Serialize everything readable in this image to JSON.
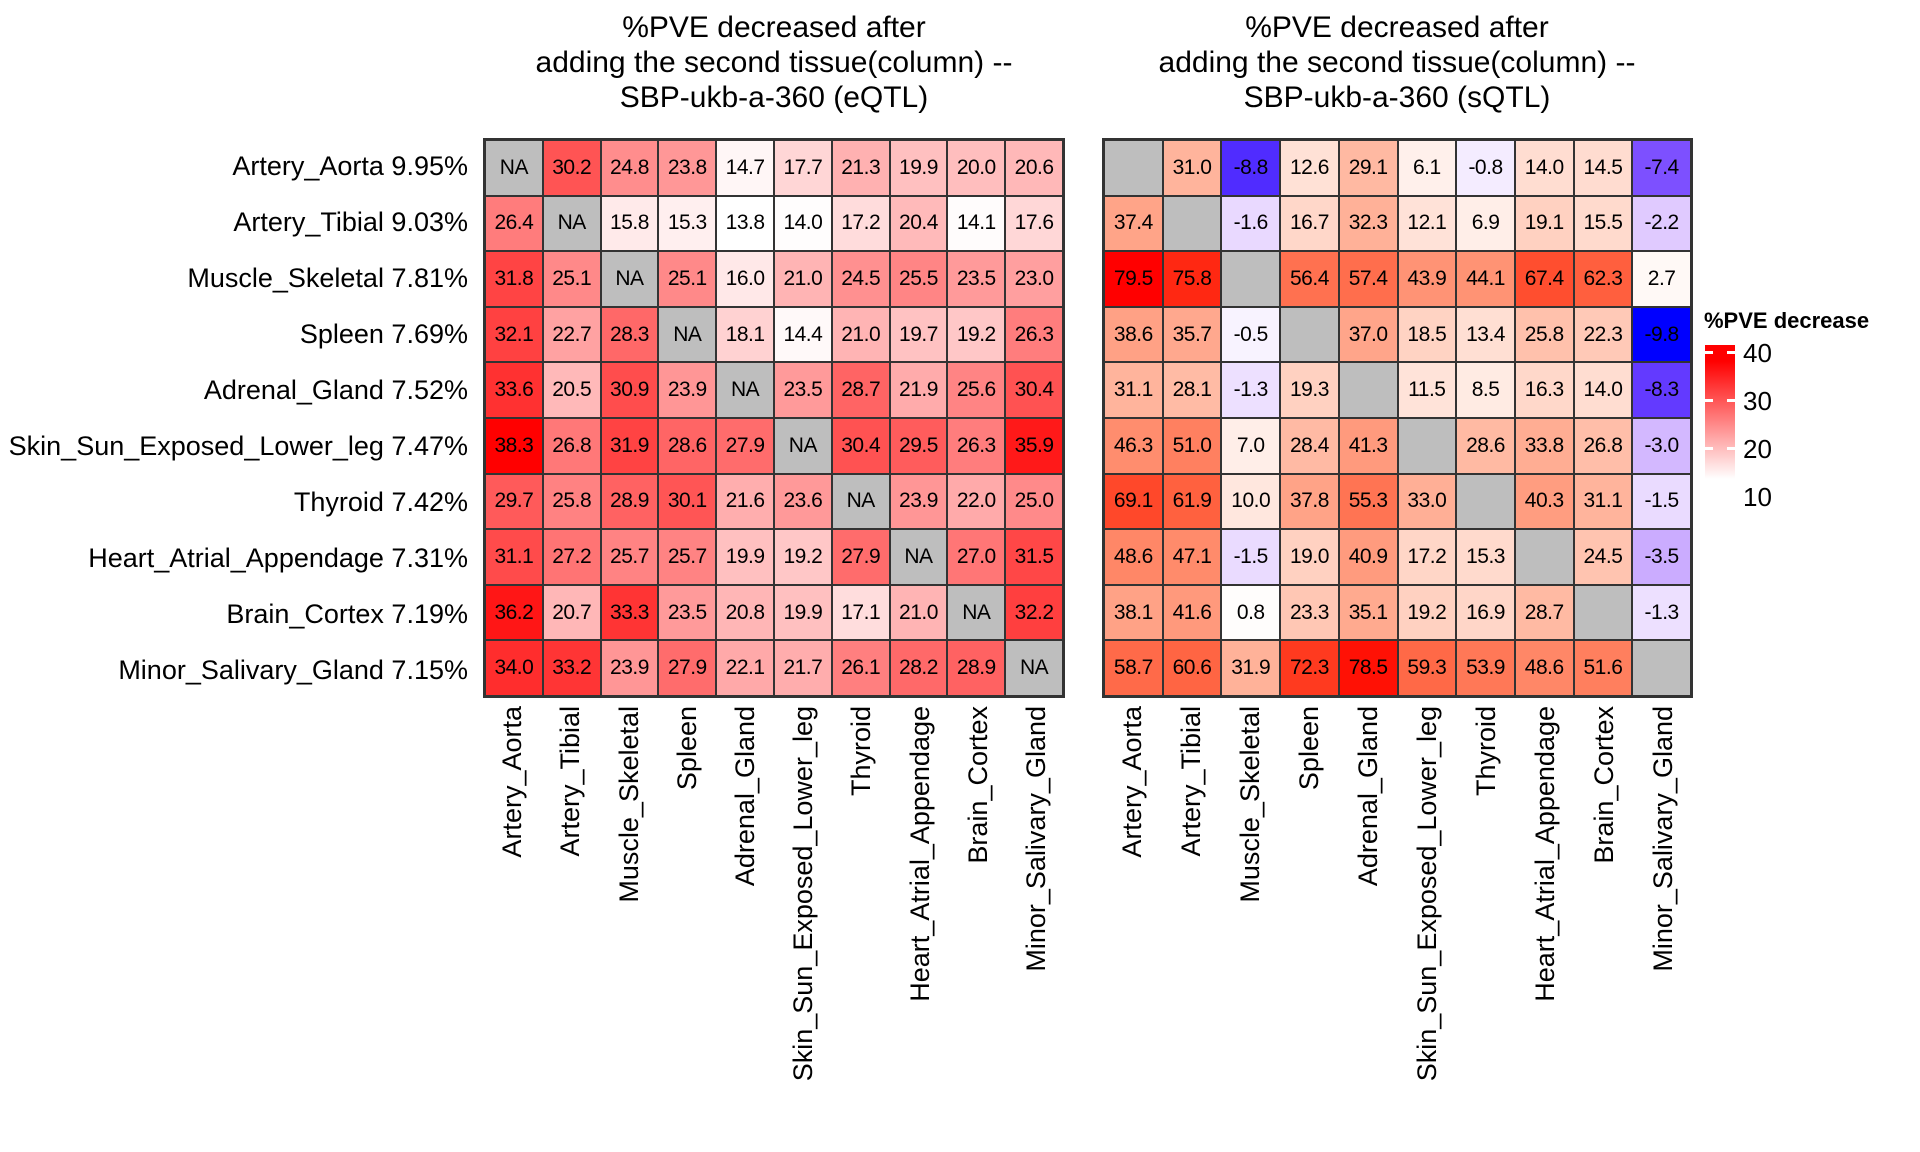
{
  "colors": {
    "background": "#ffffff",
    "na_fill": "#bebebe",
    "cell_border": "#333333",
    "text": "#000000",
    "heat_red": "#ff0000",
    "heat_blue": "#0000ff"
  },
  "chart_data": {
    "type": "heatmap",
    "rows": [
      {
        "tissue": "Artery_Aorta",
        "pve": "9.95%"
      },
      {
        "tissue": "Artery_Tibial",
        "pve": "9.03%"
      },
      {
        "tissue": "Muscle_Skeletal",
        "pve": "7.81%"
      },
      {
        "tissue": "Spleen",
        "pve": "7.69%"
      },
      {
        "tissue": "Adrenal_Gland",
        "pve": "7.52%"
      },
      {
        "tissue": "Skin_Sun_Exposed_Lower_leg",
        "pve": "7.47%"
      },
      {
        "tissue": "Thyroid",
        "pve": "7.42%"
      },
      {
        "tissue": "Heart_Atrial_Appendage",
        "pve": "7.31%"
      },
      {
        "tissue": "Brain_Cortex",
        "pve": "7.19%"
      },
      {
        "tissue": "Minor_Salivary_Gland",
        "pve": "7.15%"
      }
    ],
    "columns": [
      "Artery_Aorta",
      "Artery_Tibial",
      "Muscle_Skeletal",
      "Spleen",
      "Adrenal_Gland",
      "Skin_Sun_Exposed_Lower_leg",
      "Thyroid",
      "Heart_Atrial_Appendage",
      "Brain_Cortex",
      "Minor_Salivary_Gland"
    ],
    "heatmaps": [
      {
        "name": "eQTL",
        "title_lines": [
          "%PVE decreased after",
          "adding the second tissue(column) --",
          "SBP-ukb-a-360 (eQTL)"
        ],
        "na_label": "NA",
        "color_scale": {
          "type": "linear-rgb",
          "white_at": 13.8,
          "red_at": 38.3
        },
        "values": [
          [
            null,
            30.2,
            24.8,
            23.8,
            14.7,
            17.7,
            21.3,
            19.9,
            20.0,
            20.6
          ],
          [
            26.4,
            null,
            15.8,
            15.3,
            13.8,
            14.0,
            17.2,
            20.4,
            14.1,
            17.6
          ],
          [
            31.8,
            25.1,
            null,
            25.1,
            16.0,
            21.0,
            24.5,
            25.5,
            23.5,
            23.0
          ],
          [
            32.1,
            22.7,
            28.3,
            null,
            18.1,
            14.4,
            21.0,
            19.7,
            19.2,
            26.3
          ],
          [
            33.6,
            20.5,
            30.9,
            23.9,
            null,
            23.5,
            28.7,
            21.9,
            25.6,
            30.4
          ],
          [
            38.3,
            26.8,
            31.9,
            28.6,
            27.9,
            null,
            30.4,
            29.5,
            26.3,
            35.9
          ],
          [
            29.7,
            25.8,
            28.9,
            30.1,
            21.6,
            23.6,
            null,
            23.9,
            22.0,
            25.0
          ],
          [
            31.1,
            27.2,
            25.7,
            25.7,
            19.9,
            19.2,
            27.9,
            null,
            27.0,
            31.5
          ],
          [
            36.2,
            20.7,
            33.3,
            23.5,
            20.8,
            19.9,
            17.1,
            21.0,
            null,
            32.2
          ],
          [
            34.0,
            33.2,
            23.9,
            27.9,
            22.1,
            21.7,
            26.1,
            28.2,
            28.9,
            null
          ]
        ]
      },
      {
        "name": "sQTL",
        "title_lines": [
          "%PVE decreased after",
          "adding the second tissue(column) --",
          "SBP-ukb-a-360 (sQTL)"
        ],
        "na_label": "",
        "color_scale": {
          "type": "lab-diverging",
          "blue_at": -9.8,
          "white_at": 0,
          "red_at": 79.5
        },
        "values": [
          [
            null,
            31.0,
            -8.8,
            12.6,
            29.1,
            6.1,
            -0.8,
            14.0,
            14.5,
            -7.4
          ],
          [
            37.4,
            null,
            -1.6,
            16.7,
            32.3,
            12.1,
            6.9,
            19.1,
            15.5,
            -2.2
          ],
          [
            79.5,
            75.8,
            null,
            56.4,
            57.4,
            43.9,
            44.1,
            67.4,
            62.3,
            2.7
          ],
          [
            38.6,
            35.7,
            -0.5,
            null,
            37.0,
            18.5,
            13.4,
            25.8,
            22.3,
            -9.8
          ],
          [
            31.1,
            28.1,
            -1.3,
            19.3,
            null,
            11.5,
            8.5,
            16.3,
            14.0,
            -8.3
          ],
          [
            46.3,
            51.0,
            7.0,
            28.4,
            41.3,
            null,
            28.6,
            33.8,
            26.8,
            -3.0
          ],
          [
            69.1,
            61.9,
            10.0,
            37.8,
            55.3,
            33.0,
            null,
            40.3,
            31.1,
            -1.5
          ],
          [
            48.6,
            47.1,
            -1.5,
            19.0,
            40.9,
            17.2,
            15.3,
            null,
            24.5,
            -3.5
          ],
          [
            38.1,
            41.6,
            0.8,
            23.3,
            35.1,
            19.2,
            16.9,
            28.7,
            null,
            -1.3
          ],
          [
            58.7,
            60.6,
            31.9,
            72.3,
            78.5,
            59.3,
            53.9,
            48.6,
            51.6,
            null
          ]
        ]
      }
    ],
    "legend": {
      "title": "%PVE decrease",
      "ticks": [
        "40",
        "30",
        "20",
        "10"
      ],
      "gradient_top": "#ff0000",
      "gradient_bottom": "#ffffff",
      "position": "right"
    }
  }
}
